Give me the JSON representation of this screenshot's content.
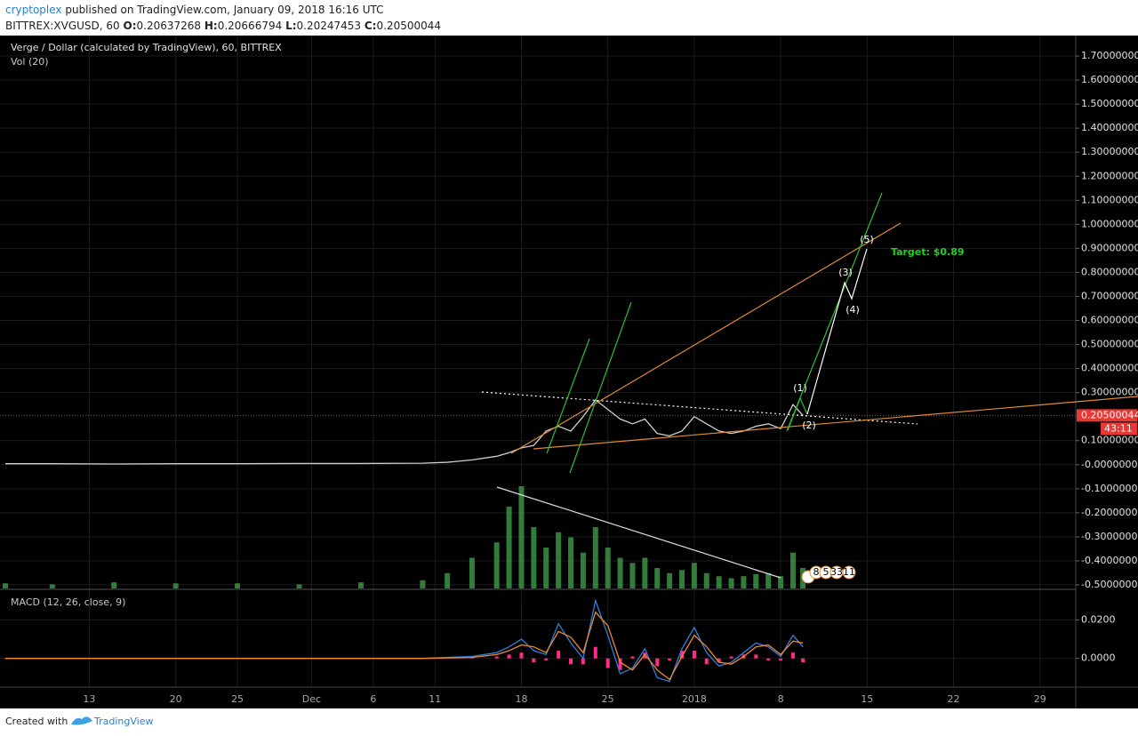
{
  "header": {
    "author": "cryptoplex",
    "published": " published on TradingView.com, January 09, 2018 16:16 UTC",
    "symbol": "BITTREX:XVGUSD, 60",
    "ohlc": [
      {
        "label": "O:",
        "value": 0.20637268
      },
      {
        "label": "H:",
        "value": 0.20666794
      },
      {
        "label": "L:",
        "value": 0.20247453
      },
      {
        "label": "C:",
        "value": 0.20500044
      }
    ]
  },
  "chart_data": [
    {
      "type": "line",
      "title": "Verge / Dollar (calculated by TradingView), 60, BITTREX",
      "color": "#d0d0d0",
      "x": [
        6.2,
        10,
        15,
        20,
        25,
        30,
        35,
        40,
        42,
        44,
        46,
        47,
        48,
        49,
        50,
        51,
        52,
        53,
        54,
        55,
        56,
        57,
        58,
        59,
        60,
        61,
        62,
        63,
        64,
        65,
        66,
        67,
        68,
        69,
        70,
        70.8
      ],
      "values": [
        0.004,
        0.004,
        0.003,
        0.004,
        0.004,
        0.005,
        0.005,
        0.006,
        0.01,
        0.02,
        0.035,
        0.05,
        0.07,
        0.08,
        0.14,
        0.16,
        0.14,
        0.2,
        0.27,
        0.23,
        0.19,
        0.17,
        0.19,
        0.13,
        0.12,
        0.14,
        0.2,
        0.17,
        0.14,
        0.13,
        0.14,
        0.16,
        0.17,
        0.15,
        0.25,
        0.205
      ],
      "xlim": [
        6.2,
        92.9
      ],
      "xticks": [
        13,
        20,
        25,
        {
          "value": 31,
          "label": "Dec"
        },
        {
          "value": 36,
          "label": "6"
        },
        {
          "value": 41,
          "label": "11"
        },
        {
          "value": 48,
          "label": "18"
        },
        {
          "value": 55,
          "label": "25"
        },
        {
          "value": 62,
          "label": "2018"
        },
        {
          "value": 69,
          "label": "8"
        },
        {
          "value": 76,
          "label": "15"
        },
        {
          "value": 83,
          "label": "22"
        },
        {
          "value": 90,
          "label": "29"
        }
      ],
      "ylim": [
        -0.5185,
        1.7852
      ],
      "yticks": [
        {
          "value": 1.7,
          "label": "1.70000000"
        },
        {
          "value": 1.6,
          "label": "1.60000000"
        },
        {
          "value": 1.5,
          "label": "1.50000000"
        },
        {
          "value": 1.4,
          "label": "1.40000000"
        },
        {
          "value": 1.3,
          "label": "1.30000000"
        },
        {
          "value": 1.2,
          "label": "1.20000000"
        },
        {
          "value": 1.1,
          "label": "1.10000000"
        },
        {
          "value": 1.0,
          "label": "1.00000000"
        },
        {
          "value": 0.9,
          "label": "0.90000000"
        },
        {
          "value": 0.8,
          "label": "0.80000000"
        },
        {
          "value": 0.7,
          "label": "0.70000000"
        },
        {
          "value": 0.6,
          "label": "0.60000000"
        },
        {
          "value": 0.5,
          "label": "0.50000000"
        },
        {
          "value": 0.4,
          "label": "0.40000000"
        },
        {
          "value": 0.3,
          "label": "0.30000000"
        },
        {
          "value": 0.1,
          "label": "0.10000000"
        },
        {
          "value": 0,
          "label": "-0.00000000"
        },
        {
          "value": -0.1,
          "label": "-0.10000000"
        },
        {
          "value": -0.2,
          "label": "-0.20000000"
        },
        {
          "value": -0.3,
          "label": "-0.30000000"
        },
        {
          "value": -0.4,
          "label": "-0.40000000"
        },
        {
          "value": -0.5,
          "label": "-0.50000000"
        }
      ],
      "grid": true,
      "last_price": 0.20500044,
      "last_price_color": "#e53935",
      "countdown": "43:11",
      "annotations": {
        "waves": [
          "(1)",
          "(2)",
          "(3)",
          "(4)",
          "(5)"
        ],
        "target": "Target: $0.89",
        "badges": [
          "8",
          "5",
          "33",
          "11"
        ]
      }
    },
    {
      "type": "bar",
      "title": "Vol (20)",
      "color": "#3f9b4a",
      "x": [
        6.2,
        10,
        15,
        20,
        25,
        30,
        35,
        40,
        42,
        44,
        46,
        47,
        48,
        49,
        50,
        51,
        52,
        53,
        54,
        55,
        56,
        57,
        58,
        59,
        60,
        61,
        62,
        63,
        64,
        65,
        66,
        67,
        68,
        69,
        70,
        70.8
      ],
      "values": [
        5,
        4,
        6,
        5,
        5,
        4,
        6,
        8,
        15,
        30,
        45,
        80,
        100,
        60,
        40,
        55,
        50,
        35,
        60,
        40,
        30,
        25,
        30,
        20,
        15,
        18,
        25,
        15,
        12,
        10,
        12,
        14,
        15,
        12,
        35,
        20
      ]
    },
    {
      "type": "line",
      "title": "MACD (12, 26, close, 9)",
      "x": [
        6.2,
        20,
        40,
        44,
        46,
        47,
        48,
        49,
        50,
        51,
        52,
        53,
        54,
        55,
        56,
        57,
        58,
        59,
        60,
        61,
        62,
        63,
        64,
        65,
        66,
        67,
        68,
        69,
        70,
        70.8
      ],
      "series": [
        {
          "color": "#2f7fe0",
          "values": [
            0,
            0,
            0,
            0.001,
            0.003,
            0.006,
            0.01,
            0.004,
            0.002,
            0.018,
            0.008,
            0.0,
            0.03,
            0.012,
            -0.008,
            -0.005,
            0.005,
            -0.01,
            -0.012,
            0.005,
            0.016,
            0.003,
            -0.004,
            -0.002,
            0.003,
            0.008,
            0.006,
            0.001,
            0.012,
            0.006
          ]
        },
        {
          "color": "#f08a2c",
          "values": [
            0,
            0,
            0,
            0.0005,
            0.002,
            0.004,
            0.007,
            0.006,
            0.003,
            0.014,
            0.011,
            0.003,
            0.024,
            0.017,
            -0.002,
            -0.006,
            0.002,
            -0.006,
            -0.011,
            0.001,
            0.012,
            0.006,
            -0.002,
            -0.003,
            0.001,
            0.006,
            0.007,
            0.002,
            0.009,
            0.008
          ]
        }
      ],
      "histogram": {
        "color": "#ff2a8a",
        "values": [
          0,
          0,
          0,
          0.0005,
          0.001,
          0.002,
          0.003,
          -0.002,
          -0.001,
          0.004,
          -0.003,
          -0.003,
          0.006,
          -0.005,
          -0.006,
          0.001,
          0.003,
          -0.004,
          -0.001,
          0.004,
          0.004,
          -0.003,
          -0.002,
          0.001,
          0.002,
          0.002,
          -0.001,
          -0.001,
          0.003,
          -0.002
        ]
      },
      "ylim": [
        -0.0149,
        0.034
      ],
      "yticks": [
        {
          "value": 0.02,
          "label": "0.0200"
        },
        {
          "value": 0,
          "label": "0.0000"
        }
      ]
    }
  ],
  "footer": {
    "created": "Created with",
    "brand": "TradingView"
  }
}
